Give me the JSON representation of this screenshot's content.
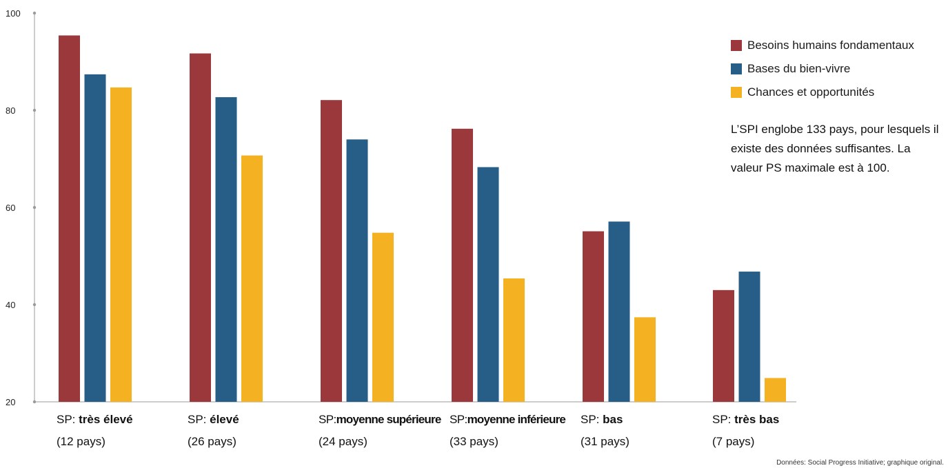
{
  "chart_data": {
    "type": "bar",
    "categories": [
      {
        "prefix": "SP:",
        "bold": "très élevé",
        "sub": "(12 pays)",
        "condensed": false
      },
      {
        "prefix": "SP:",
        "bold": "élevé",
        "sub": "(26 pays)",
        "condensed": false
      },
      {
        "prefix": "SP:",
        "bold": "moyenne supérieure",
        "sub": "(24 pays)",
        "condensed": true
      },
      {
        "prefix": "SP:",
        "bold": "moyenne inférieure",
        "sub": "(33 pays)",
        "condensed": true
      },
      {
        "prefix": "SP:",
        "bold": "bas",
        "sub": "(31 pays)",
        "condensed": false
      },
      {
        "prefix": "SP:",
        "bold": "très bas",
        "sub": "(7 pays)",
        "condensed": false
      }
    ],
    "series": [
      {
        "name": "Besoins humains fondamentaux",
        "color": "#9b383b",
        "values": [
          95.4,
          91.7,
          82.1,
          76.2,
          55.1,
          43.0
        ]
      },
      {
        "name": "Bases du bien-vivre",
        "color": "#275e87",
        "values": [
          87.4,
          82.7,
          74.0,
          68.3,
          57.1,
          46.8
        ]
      },
      {
        "name": "Chances et opportunités",
        "color": "#f4b223",
        "values": [
          84.7,
          70.7,
          54.8,
          45.4,
          37.4,
          24.9
        ]
      }
    ],
    "ylim": [
      20,
      100
    ],
    "yticks": [
      "20",
      "40",
      "60",
      "80",
      "100"
    ],
    "title": "",
    "xlabel": "",
    "ylabel": "",
    "grid": false,
    "legend_position": "top-right"
  },
  "note": "L’SPI englobe 133 pays, pour lesquels il existe des données suffisantes. La valeur PS maximale est à 100.",
  "source": "Données: Social Progress Initiative; graphique original."
}
